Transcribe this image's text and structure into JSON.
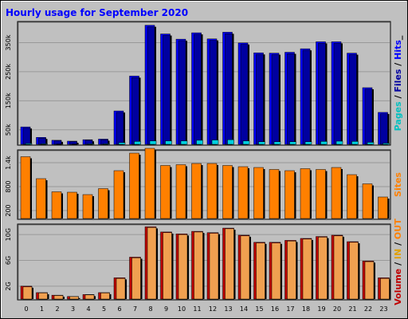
{
  "title": "Hourly usage for September 2020",
  "colors": {
    "background": "#c0c0c0",
    "frame_dark": "#808080",
    "grid": "#999999",
    "hits": "#0000ff",
    "files": "#0000a0",
    "pages": "#00d0e0",
    "sites": "#ff8000",
    "volume": "#c00000",
    "in": "#f0a050",
    "out": "#f0c080",
    "title": "#0000ff"
  },
  "chart_data": [
    {
      "type": "bar",
      "panel": "pages-files-hits",
      "categories": [
        "0",
        "1",
        "2",
        "3",
        "4",
        "5",
        "6",
        "7",
        "8",
        "9",
        "10",
        "11",
        "12",
        "13",
        "14",
        "15",
        "16",
        "17",
        "18",
        "19",
        "20",
        "21",
        "22",
        "23"
      ],
      "ylim": [
        0,
        420000
      ],
      "yticks": [
        "50k",
        "150k",
        "250k",
        "350k"
      ],
      "ytick_values": [
        50000,
        150000,
        250000,
        350000
      ],
      "side_label_parts": [
        {
          "text": "Pages",
          "color": "#00c0c0"
        },
        {
          "text": " / ",
          "color": "#000000"
        },
        {
          "text": "Files",
          "color": "#0000a0"
        },
        {
          "text": " / ",
          "color": "#000000"
        },
        {
          "text": "Hits",
          "color": "#0000ff"
        },
        {
          "text": "_",
          "color": "#000000"
        }
      ],
      "series": [
        {
          "name": "Hits",
          "color": "#0000ff",
          "values": [
            60000,
            24000,
            14000,
            11000,
            16000,
            18000,
            115000,
            235000,
            410000,
            380000,
            362000,
            384000,
            363000,
            386000,
            349000,
            315000,
            314000,
            317000,
            329000,
            353000,
            353000,
            314000,
            195000,
            110000
          ]
        },
        {
          "name": "Files",
          "color": "#0000a0",
          "values": [
            56000,
            21000,
            12000,
            9000,
            14000,
            16000,
            110000,
            230000,
            405000,
            375000,
            357000,
            379000,
            358000,
            381000,
            344000,
            310000,
            309000,
            312000,
            324000,
            348000,
            348000,
            309000,
            190000,
            105000
          ]
        },
        {
          "name": "Pages",
          "color": "#00d0e0",
          "values": [
            3000,
            2000,
            1000,
            1000,
            2000,
            2000,
            6000,
            10000,
            12000,
            12000,
            12000,
            14000,
            15000,
            16000,
            12000,
            9000,
            9000,
            9000,
            9000,
            10000,
            11000,
            10000,
            7000,
            4000
          ]
        }
      ]
    },
    {
      "type": "bar",
      "panel": "sites",
      "categories": [
        "0",
        "1",
        "2",
        "3",
        "4",
        "5",
        "6",
        "7",
        "8",
        "9",
        "10",
        "11",
        "12",
        "13",
        "14",
        "15",
        "16",
        "17",
        "18",
        "19",
        "20",
        "21",
        "22",
        "23"
      ],
      "ylim": [
        0,
        1700
      ],
      "yticks": [
        "200",
        "800",
        "1.4k"
      ],
      "ytick_values": [
        200,
        800,
        1400
      ],
      "side_label_parts": [
        {
          "text": "Sites",
          "color": "#ff8000"
        }
      ],
      "series": [
        {
          "name": "Sites",
          "color": "#ff8000",
          "values": [
            1550,
            1000,
            670,
            660,
            600,
            750,
            1200,
            1640,
            1760,
            1330,
            1350,
            1380,
            1380,
            1330,
            1300,
            1280,
            1230,
            1200,
            1250,
            1230,
            1280,
            1100,
            870,
            540
          ]
        }
      ]
    },
    {
      "type": "bar",
      "panel": "volume",
      "categories": [
        "0",
        "1",
        "2",
        "3",
        "4",
        "5",
        "6",
        "7",
        "8",
        "9",
        "10",
        "11",
        "12",
        "13",
        "14",
        "15",
        "16",
        "17",
        "18",
        "19",
        "20",
        "21",
        "22",
        "23"
      ],
      "ylim": [
        0,
        11500
      ],
      "yticks": [
        "2G",
        "6G",
        "10G"
      ],
      "ytick_values": [
        2000,
        6000,
        10000
      ],
      "side_label_parts": [
        {
          "text": "Volume",
          "color": "#c00000"
        },
        {
          "text": " / ",
          "color": "#000000"
        },
        {
          "text": "IN",
          "color": "#e0a000"
        },
        {
          "text": " / ",
          "color": "#000000"
        },
        {
          "text": "OUT",
          "color": "#ff8000"
        }
      ],
      "series": [
        {
          "name": "Volume",
          "color": "#c00000",
          "values": [
            2000,
            1000,
            600,
            400,
            700,
            1000,
            3300,
            6500,
            11200,
            10400,
            10100,
            10500,
            10300,
            11000,
            9900,
            8800,
            8800,
            9100,
            9400,
            9700,
            9900,
            8900,
            5900,
            3300
          ]
        },
        {
          "name": "In",
          "color": "#f0a050",
          "values": [
            1900,
            950,
            550,
            380,
            650,
            950,
            3200,
            6400,
            11100,
            10300,
            10000,
            10400,
            10200,
            10900,
            9800,
            8700,
            8700,
            9000,
            9300,
            9600,
            9800,
            8800,
            5800,
            3200
          ]
        }
      ]
    }
  ]
}
